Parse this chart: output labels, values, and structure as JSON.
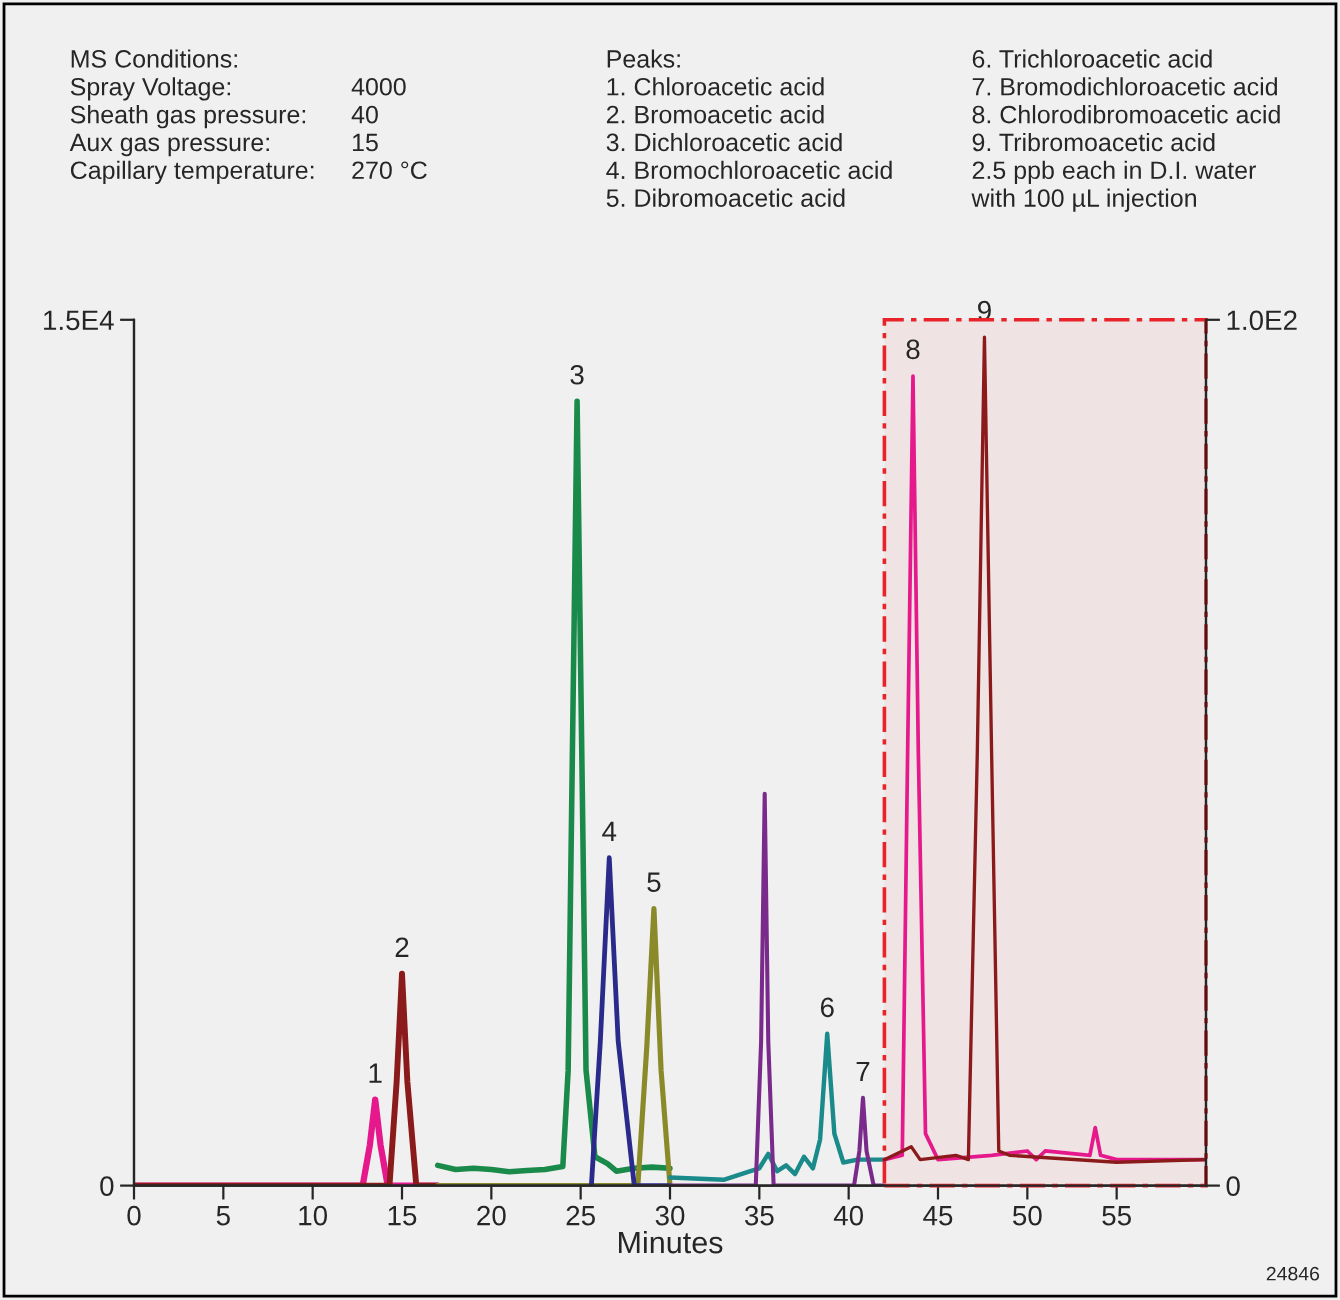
{
  "chart_data": {
    "type": "line",
    "xlabel": "Minutes",
    "xlim": [
      0,
      60
    ],
    "xticks": [
      0,
      5,
      10,
      15,
      20,
      25,
      30,
      35,
      40,
      45,
      50,
      55
    ],
    "ylim": [
      0,
      15000
    ],
    "yticks": [
      {
        "value": 0,
        "label": "0"
      },
      {
        "value": 15000,
        "label": "1.5E4"
      }
    ],
    "y2lim": [
      0,
      100
    ],
    "y2ticks": [
      {
        "value": 0,
        "label": "0"
      },
      {
        "value": 100,
        "label": "1.0E2"
      }
    ],
    "grid": false,
    "legend": false,
    "marker": "none",
    "line_style": "solid",
    "series": [
      {
        "color": "#e6198c",
        "x": [
          0,
          12.8,
          13.2,
          13.5,
          13.8,
          14.2,
          17
        ],
        "values": [
          0,
          0,
          700,
          1490,
          700,
          0,
          0
        ]
      },
      {
        "color": "#8b1a1a",
        "x": [
          0,
          14.3,
          14.7,
          15,
          15.3,
          15.8,
          17
        ],
        "values": [
          0,
          0,
          1800,
          3670,
          1800,
          0,
          0
        ]
      },
      {
        "color": "#1a8a4a",
        "x": [
          17,
          18,
          19,
          20,
          21,
          22,
          23,
          24,
          24.3,
          24.8,
          25.3,
          25.8,
          26.5,
          27,
          28,
          29,
          30
        ],
        "values": [
          350,
          280,
          300,
          280,
          240,
          260,
          280,
          330,
          2000,
          13590,
          2000,
          500,
          380,
          250,
          300,
          320,
          300
        ]
      },
      {
        "color": "#8a8a2a",
        "x": [
          17,
          28.2,
          28.7,
          29.1,
          29.5,
          30
        ],
        "values": [
          0,
          0,
          2400,
          4800,
          2000,
          0
        ]
      },
      {
        "color": "#2a2a8a",
        "x": [
          25.6,
          26.1,
          26.6,
          27.1,
          28,
          30
        ],
        "values": [
          0,
          2500,
          5680,
          2500,
          0,
          0
        ]
      },
      {
        "color": "#1a8a8a",
        "x": [
          30,
          33,
          34.5,
          35,
          35.5,
          36,
          36.5,
          37,
          37.5,
          38,
          38.4,
          38.8,
          39.2,
          39.7,
          40.5,
          41,
          42
        ],
        "values": [
          140,
          100,
          250,
          300,
          550,
          250,
          350,
          200,
          500,
          300,
          800,
          2630,
          900,
          400,
          450,
          450,
          450
        ]
      },
      {
        "color": "#7a2a8a",
        "x": [
          30,
          34.8,
          35.1,
          35.3,
          35.5,
          35.8,
          40.3,
          40.6,
          40.8,
          41.0,
          41.4,
          42
        ],
        "values": [
          0,
          0,
          2500,
          6790,
          2500,
          0,
          0,
          600,
          1520,
          600,
          0,
          0
        ]
      },
      {
        "color": "#e6198c",
        "axis": "y2",
        "x": [
          42,
          43,
          43.3,
          43.6,
          43.9,
          44.3,
          45,
          48,
          50,
          50.5,
          51,
          53.5,
          53.8,
          54.1,
          55,
          60
        ],
        "values": [
          3,
          3.5,
          50,
          93.5,
          50,
          6,
          3,
          3.5,
          4,
          3,
          4,
          3.5,
          6.7,
          3.5,
          3,
          3
        ]
      },
      {
        "color": "#8b1a1a",
        "axis": "y2",
        "x": [
          42,
          43.5,
          44,
          46,
          46.7,
          47.2,
          47.6,
          48,
          48.4,
          49,
          55,
          60
        ],
        "values": [
          3,
          4.5,
          3,
          3.5,
          3,
          50,
          98,
          50,
          4,
          3.5,
          2.7,
          3
        ]
      }
    ],
    "bands": [
      {
        "axis": "x",
        "from": 42,
        "to": 60,
        "color": "#e8232a"
      }
    ],
    "annotations": [
      {
        "text": "1",
        "x": 13.5,
        "y": 1490
      },
      {
        "text": "2",
        "x": 15,
        "y": 3670
      },
      {
        "text": "3",
        "x": 24.8,
        "y": 13590
      },
      {
        "text": "4",
        "x": 26.6,
        "y": 5680
      },
      {
        "text": "5",
        "x": 29.1,
        "y": 4800
      },
      {
        "text": "6",
        "x": 38.8,
        "y": 2630
      },
      {
        "text": "7",
        "x": 40.8,
        "y": 1520
      },
      {
        "text": "8",
        "x": 43.6,
        "y": 14030
      },
      {
        "text": "9",
        "x": 47.6,
        "y": 14700
      },
      "MS Conditions:\nSpray Voltage:\nSheath gas pressure:\nAux gas pressure:\nCapillary temperature:",
      "\n4000\n40\n15\n270 °C",
      "Peaks:\n1. Chloroacetic acid\n2. Bromoacetic acid\n3. Dichloroacetic acid\n4. Bromochloroacetic acid\n5. Dibromoacetic acid",
      "6. Trichloroacetic acid\n7. Bromodichloroacetic acid\n8. Chlorodibromoacetic acid\n9. Tribromoacetic acid\n2.5 ppb each in D.I. water\nwith 100 µL injection",
      "24846"
    ]
  }
}
